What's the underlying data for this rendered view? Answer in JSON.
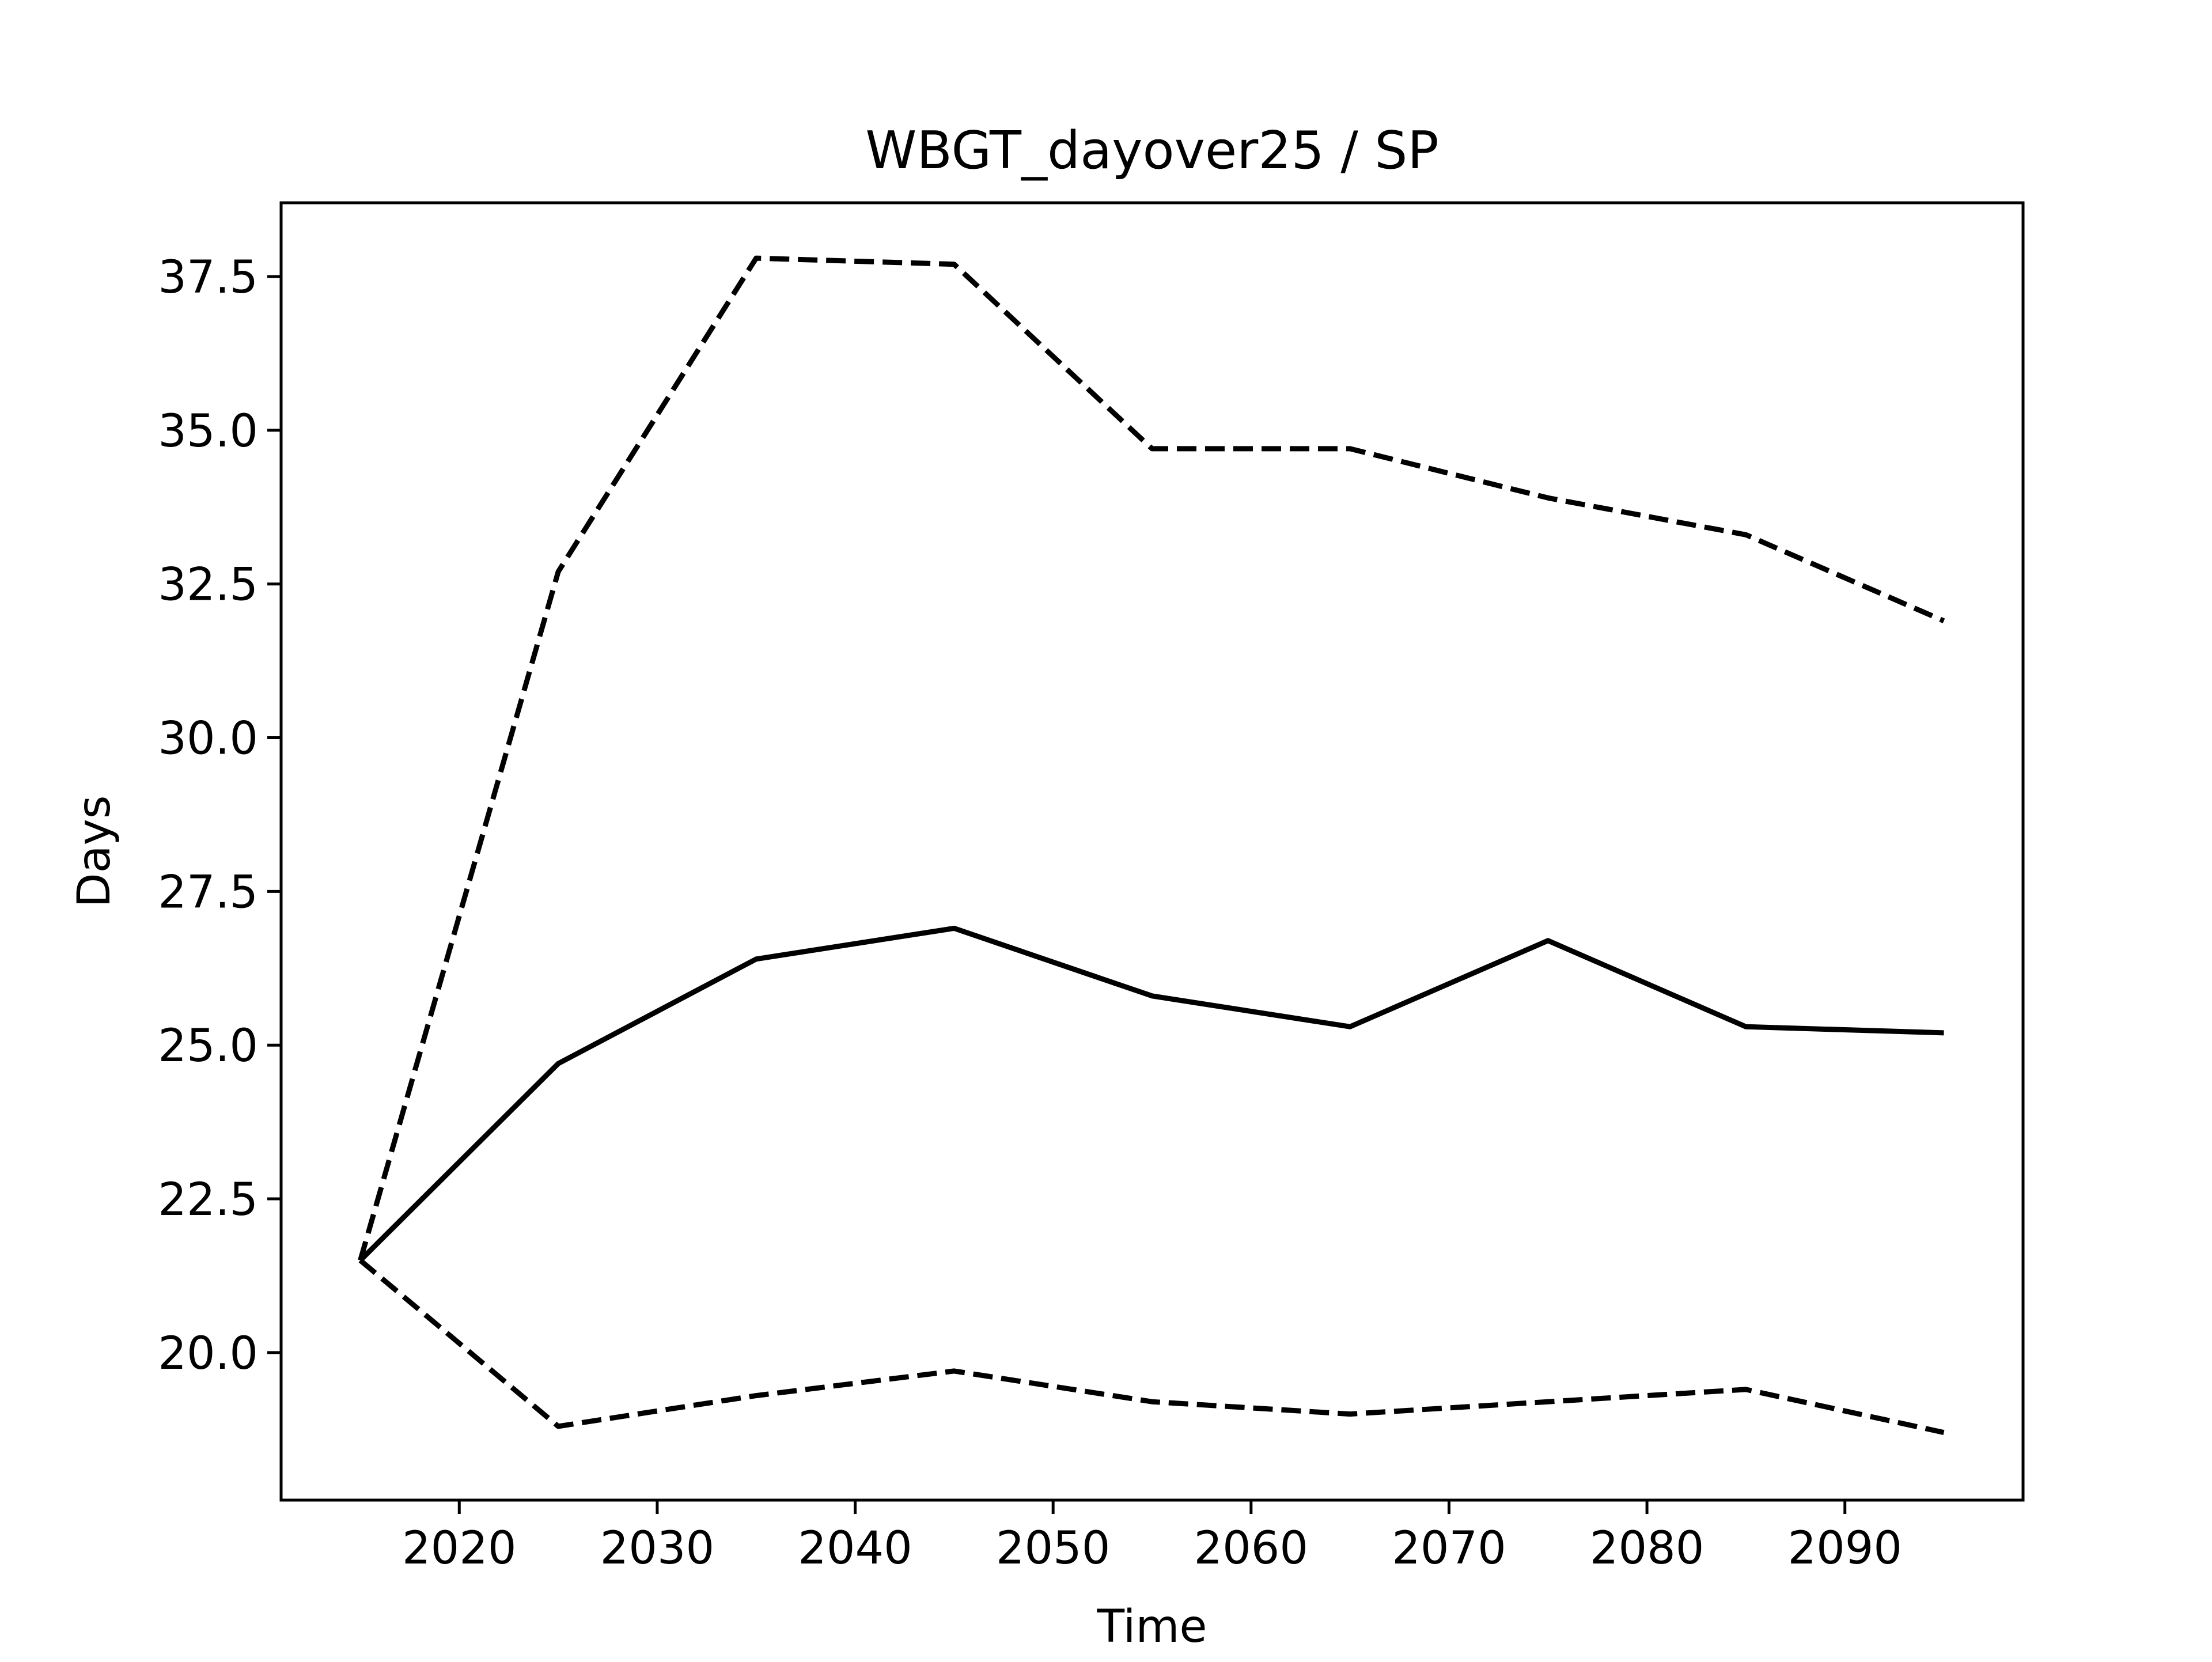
{
  "chart_data": {
    "type": "line",
    "title": "WBGT_dayover25 / SP",
    "xlabel": "Time",
    "ylabel": "Days",
    "xlim": [
      2011,
      2099
    ],
    "ylim": [
      17.6,
      38.7
    ],
    "grid": false,
    "legend": "none",
    "x_ticks": [
      2020,
      2030,
      2040,
      2050,
      2060,
      2070,
      2080,
      2090
    ],
    "y_ticks": [
      20.0,
      22.5,
      25.0,
      27.5,
      30.0,
      32.5,
      35.0,
      37.5
    ],
    "x": [
      2015,
      2025,
      2035,
      2045,
      2055,
      2065,
      2075,
      2085,
      2095
    ],
    "series": [
      {
        "style": "solid",
        "color": "#000000",
        "values": [
          21.5,
          24.7,
          26.4,
          26.9,
          25.8,
          25.3,
          26.7,
          25.3,
          25.2
        ]
      },
      {
        "style": "dashed",
        "color": "#000000",
        "values": [
          21.5,
          32.7,
          37.8,
          37.7,
          34.7,
          34.7,
          33.9,
          33.3,
          31.9
        ]
      },
      {
        "style": "dashed",
        "color": "#000000",
        "values": [
          21.5,
          18.8,
          19.3,
          19.7,
          19.2,
          19.0,
          19.2,
          19.4,
          18.7
        ]
      }
    ]
  }
}
